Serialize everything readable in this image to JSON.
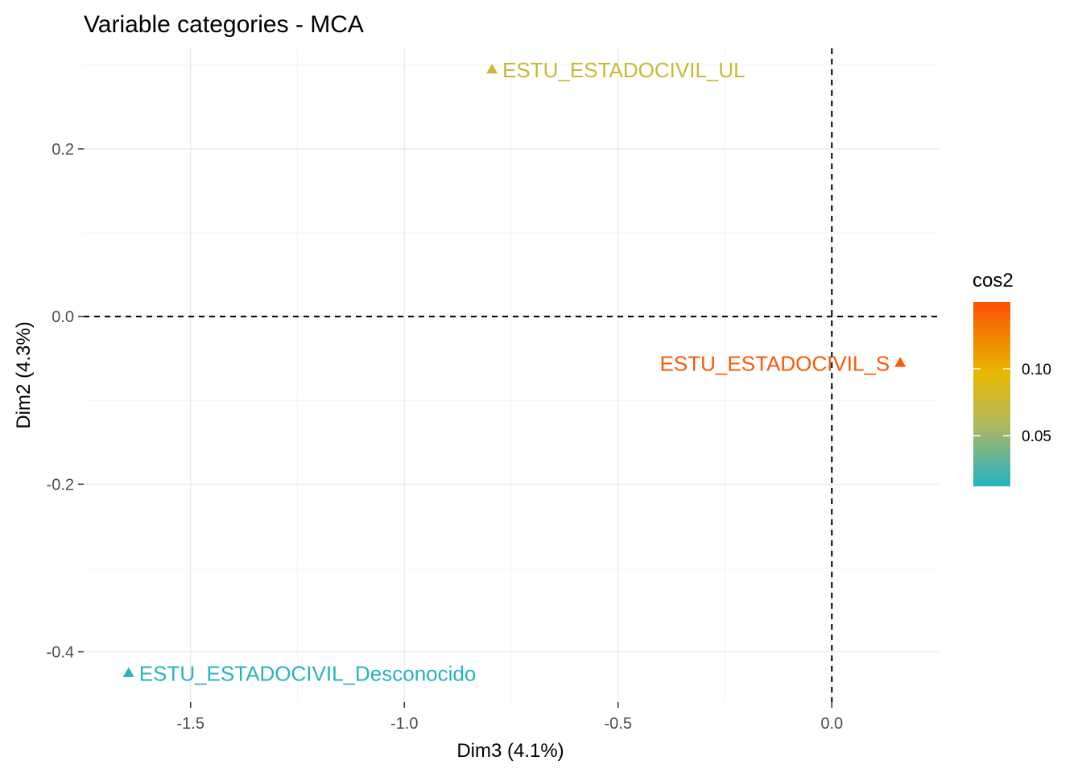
{
  "chart_data": {
    "type": "scatter",
    "title": "Variable categories - MCA",
    "xlabel": "Dim3 (4.1%)",
    "ylabel": "Dim2 (4.3%)",
    "xlim": [
      -1.75,
      0.25
    ],
    "ylim": [
      -0.46,
      0.32
    ],
    "x_ticks": [
      -1.5,
      -1.0,
      -0.5,
      0.0
    ],
    "x_tick_labels": [
      "-1.5",
      "-1.0",
      "-0.5",
      "0.0"
    ],
    "y_ticks": [
      -0.4,
      -0.2,
      0.0,
      0.2
    ],
    "y_tick_labels": [
      "-0.4",
      "-0.2",
      "0.0",
      "0.2"
    ],
    "grid": true,
    "reference_lines": {
      "x": 0,
      "y": 0,
      "style": "dashed"
    },
    "points": [
      {
        "label": "ESTU_ESTADOCIVIL_UL",
        "x": -0.795,
        "y": 0.295,
        "cos2": 0.075,
        "label_side": "right"
      },
      {
        "label": "ESTU_ESTADOCIVIL_S",
        "x": 0.16,
        "y": -0.055,
        "cos2": 0.145,
        "label_side": "left"
      },
      {
        "label": "ESTU_ESTADOCIVIL_Desconocido",
        "x": -1.645,
        "y": -0.425,
        "cos2": 0.014,
        "label_side": "right"
      }
    ],
    "legend": {
      "title": "cos2",
      "placement": "right",
      "min": 0.012,
      "max": 0.15,
      "ticks": [
        0.05,
        0.1
      ],
      "tick_labels": [
        "0.05",
        "0.10"
      ],
      "colors": [
        "#22b3c1",
        "#e8b800",
        "#fc4e07"
      ]
    }
  }
}
